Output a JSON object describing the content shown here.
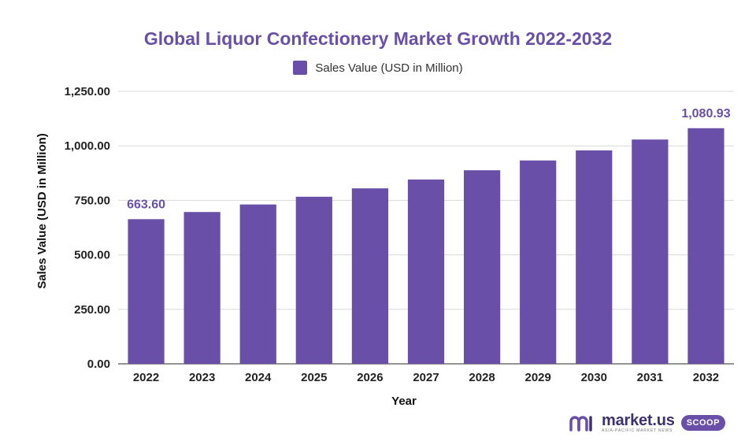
{
  "chart_data": {
    "type": "bar",
    "title": "Global Liquor Confectionery Market Growth 2022-2032",
    "xlabel": "Year",
    "ylabel": "Sales Value (USD in Million)",
    "categories": [
      "2022",
      "2023",
      "2024",
      "2025",
      "2026",
      "2027",
      "2028",
      "2029",
      "2030",
      "2031",
      "2032"
    ],
    "series": [
      {
        "name": "Sales Value (USD in Million)",
        "values": [
          663.6,
          696.5,
          731.0,
          766.5,
          805.0,
          845.5,
          888.0,
          933.0,
          979.0,
          1029.0,
          1080.93
        ]
      }
    ],
    "ylim": [
      0,
      1250
    ],
    "yticks": [
      "0.00",
      "250.00",
      "500.00",
      "750.00",
      "1,000.00",
      "1,250.00"
    ],
    "data_labels": [
      {
        "category": "2022",
        "text": "663.60"
      },
      {
        "category": "2032",
        "text": "1,080.93"
      }
    ],
    "grid": true,
    "legend_position": "top-center",
    "bar_color": "#6a4fa8"
  },
  "branding": {
    "name": "market.us",
    "tagline": "ASIA-PACIFIC MARKET NEWS",
    "badge": "SCOOP"
  }
}
